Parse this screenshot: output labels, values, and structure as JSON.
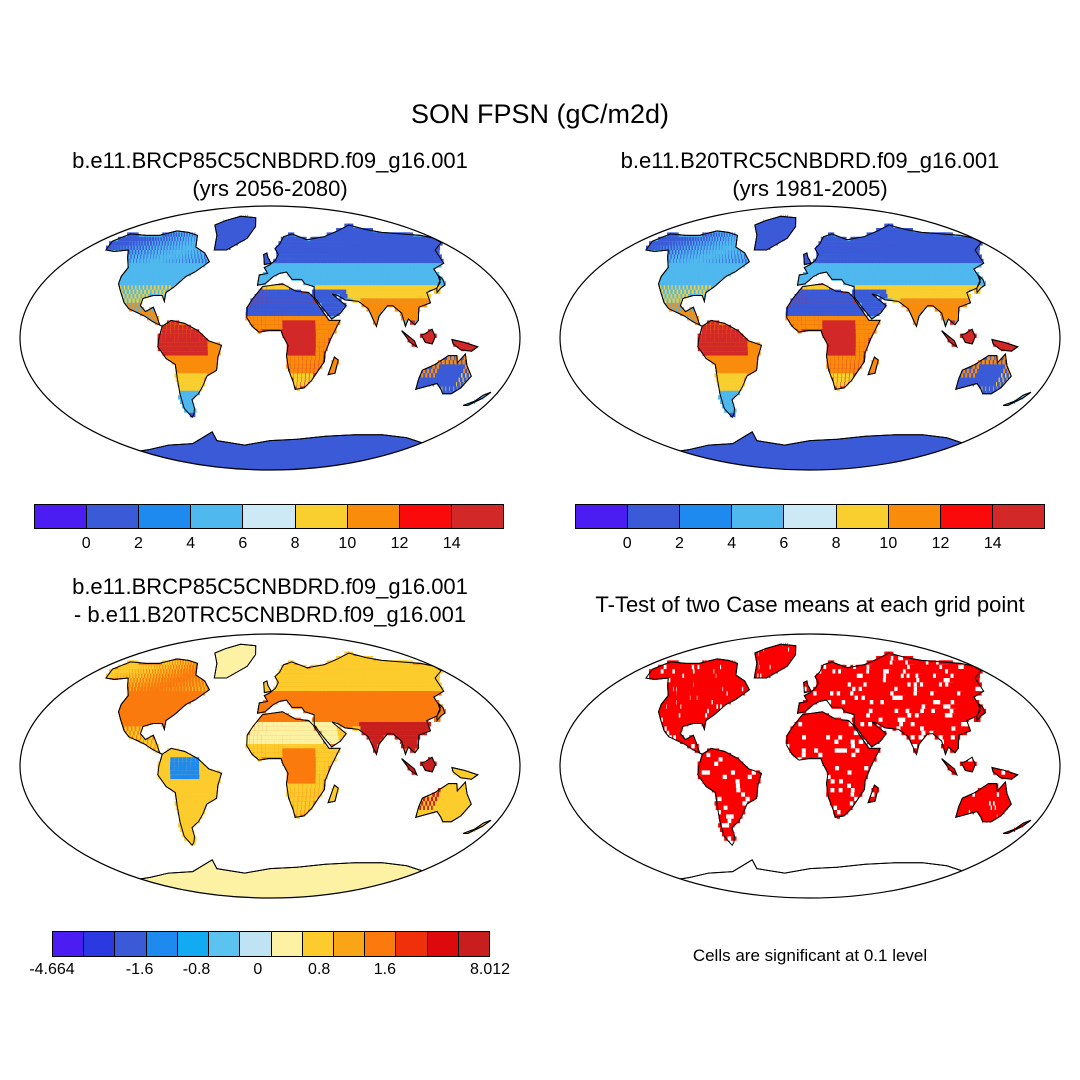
{
  "figure": {
    "title": "SON FPSN (gC/m2d)",
    "panels": [
      {
        "id": "p1",
        "title_line1": "b.e11.BRCP85C5CNBDRD.f09_g16.001",
        "title_line2": "(yrs 2056-2080)"
      },
      {
        "id": "p2",
        "title_line1": "b.e11.B20TRC5CNBDRD.f09_g16.001",
        "title_line2": "(yrs 1981-2005)"
      },
      {
        "id": "p3",
        "title_line1": "b.e11.BRCP85C5CNBDRD.f09_g16.001",
        "title_line2": "- b.e11.B20TRC5CNBDRD.f09_g16.001"
      },
      {
        "id": "p4",
        "title_line1": "T-Test of two Case means at each grid point"
      }
    ],
    "note": "Cells are significant at 0.1 level"
  },
  "colorbars": {
    "abs": {
      "colors": [
        "#4B1DF2",
        "#3A5AD8",
        "#1E8AF0",
        "#4FB8EE",
        "#CDE9F5",
        "#F8CF2E",
        "#FA8C0C",
        "#FA0A0A",
        "#D22828"
      ],
      "labels": [
        "0",
        "2",
        "4",
        "6",
        "8",
        "10",
        "12",
        "14"
      ]
    },
    "diff": {
      "colors": [
        "#4B1DF2",
        "#2A3AE0",
        "#3A5AD8",
        "#1E8AF0",
        "#12AAF0",
        "#5AC3F0",
        "#BFE3F3",
        "#FDF2A4",
        "#FCCB2C",
        "#FAA516",
        "#FA7A0E",
        "#F0300A",
        "#DC0A0A",
        "#C81E1E"
      ],
      "labels": [
        "-4.664",
        "-1.6",
        "-0.8",
        "0",
        "0.8",
        "1.6",
        "8.012"
      ]
    }
  },
  "map_colors": {
    "ocean": "#ffffff",
    "abs_boreal": "#3A5AD8",
    "abs_temperate": "#4FB8EE",
    "abs_warm": "#F8CF2E",
    "abs_hot": "#FA8C0C",
    "abs_tropical": "#D22828",
    "diff_base": "#FDF2A4",
    "diff_mid": "#FCCB2C",
    "diff_high": "#FA7A0E",
    "diff_max": "#C81E1E",
    "diff_neg": "#1E8AF0",
    "sig": "#FA0000"
  }
}
